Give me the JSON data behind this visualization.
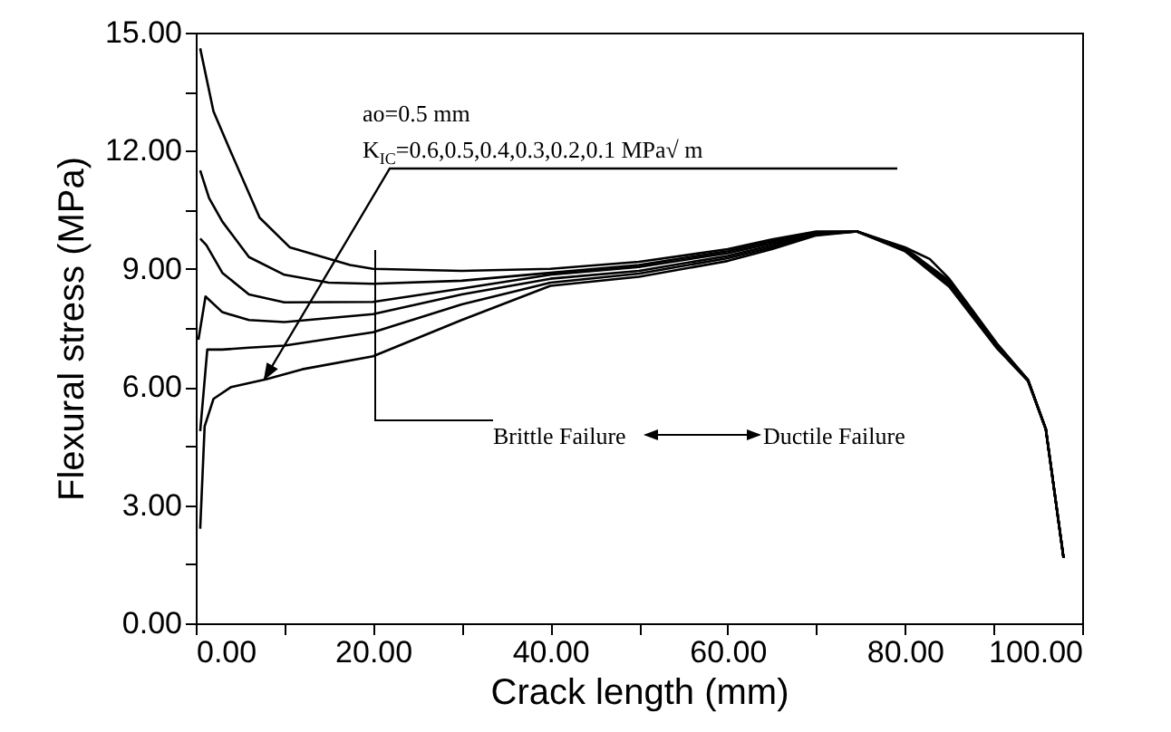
{
  "chart_data": {
    "type": "line",
    "xlabel": "Crack length (mm)",
    "ylabel": "Flexural stress (MPa)",
    "annotations": [
      "ao=0.5 mm",
      "K$_{IC}$=0.6,0.5,0.4,0.3,0.2,0.1 MPa√ m",
      "Brittle Failure",
      "Ductile Failure"
    ],
    "series": [
      {
        "color": "#000000",
        "x": [
          0.5,
          2,
          3.9,
          7.2,
          10.6,
          17.4,
          20,
          30,
          40,
          50,
          60,
          65,
          70,
          74.6,
          80,
          82.8,
          85,
          86.9,
          90.4,
          93.9,
          95.9,
          97.9
        ],
        "values": [
          14.6,
          13.0,
          12.0,
          10.3,
          9.55,
          9.1,
          9.0,
          8.95,
          9.0,
          9.18,
          9.5,
          9.75,
          9.95,
          9.95,
          9.55,
          9.25,
          8.75,
          8.17,
          7.1,
          6.18,
          4.93,
          1.66
        ]
      },
      {
        "color": "#000000",
        "x": [
          0.5,
          1.5,
          3,
          6,
          10,
          15,
          20,
          30,
          40,
          50,
          60,
          65,
          70,
          74.6,
          80,
          85,
          90.4,
          93.9,
          95.9,
          97.9
        ],
        "values": [
          11.5,
          10.8,
          10.2,
          9.3,
          8.85,
          8.65,
          8.62,
          8.7,
          8.9,
          9.1,
          9.45,
          9.7,
          9.93,
          9.95,
          9.53,
          8.7,
          7.08,
          6.18,
          4.93,
          1.66
        ]
      },
      {
        "color": "#000000",
        "x": [
          0.5,
          1.2,
          3,
          6,
          10,
          20,
          30,
          40,
          50,
          60,
          65,
          70,
          74.6,
          80,
          85,
          90.4,
          93.9,
          95.9,
          97.9
        ],
        "values": [
          9.77,
          9.6,
          8.9,
          8.35,
          8.15,
          8.16,
          8.5,
          8.85,
          9.05,
          9.4,
          9.65,
          9.91,
          9.95,
          9.51,
          8.65,
          7.05,
          6.17,
          4.93,
          1.66
        ]
      },
      {
        "color": "#000000",
        "x": [
          0.3,
          1.1,
          3,
          6,
          10,
          20,
          30,
          40,
          50,
          60,
          65,
          70,
          74.6,
          80,
          85,
          90.4,
          93.9,
          95.9,
          97.9
        ],
        "values": [
          7.2,
          8.3,
          7.9,
          7.7,
          7.65,
          7.85,
          8.35,
          8.75,
          8.95,
          9.33,
          9.6,
          9.89,
          9.95,
          9.49,
          8.62,
          7.02,
          6.16,
          4.93,
          1.66
        ]
      },
      {
        "color": "#000000",
        "x": [
          0.5,
          1.3,
          3,
          6,
          10,
          20,
          30,
          40,
          50,
          60,
          65,
          70,
          74.6,
          80,
          85,
          90.4,
          93.9,
          95.9,
          97.9
        ],
        "values": [
          4.88,
          6.95,
          6.95,
          7.0,
          7.05,
          7.39,
          8.1,
          8.65,
          8.88,
          9.27,
          9.55,
          9.87,
          9.95,
          9.47,
          8.58,
          7.0,
          6.15,
          4.93,
          1.66
        ]
      },
      {
        "color": "#000000",
        "x": [
          0.5,
          1.0,
          2,
          4,
          8,
          12,
          20,
          30,
          40,
          50,
          60,
          65,
          70,
          74.6,
          80,
          85,
          90.4,
          93.9,
          95.9,
          97.9
        ],
        "values": [
          2.4,
          5.0,
          5.7,
          6.0,
          6.2,
          6.45,
          6.78,
          7.7,
          8.57,
          8.8,
          9.2,
          9.5,
          9.85,
          9.95,
          9.45,
          8.55,
          6.98,
          6.15,
          4.93,
          1.66
        ]
      }
    ],
    "xlim": [
      0,
      100
    ],
    "ylim": [
      0,
      15
    ],
    "xticks": [
      {
        "value": 0,
        "label": "0.00"
      },
      {
        "value": 10,
        "label": null
      },
      {
        "value": 20,
        "label": "20.00"
      },
      {
        "value": 30,
        "label": null
      },
      {
        "value": 40,
        "label": "40.00"
      },
      {
        "value": 50,
        "label": null
      },
      {
        "value": 60,
        "label": "60.00"
      },
      {
        "value": 70,
        "label": null
      },
      {
        "value": 80,
        "label": "80.00"
      },
      {
        "value": 90,
        "label": null
      },
      {
        "value": 100,
        "label": "100.00"
      }
    ],
    "yticks": [
      {
        "value": 0,
        "label": "0.00"
      },
      {
        "value": 1.5,
        "label": null
      },
      {
        "value": 3,
        "label": "3.00"
      },
      {
        "value": 4.5,
        "label": null
      },
      {
        "value": 6,
        "label": "6.00"
      },
      {
        "value": 7.5,
        "label": null
      },
      {
        "value": 9,
        "label": "9.00"
      },
      {
        "value": 10.5,
        "label": null
      },
      {
        "value": 12,
        "label": "12.00"
      },
      {
        "value": 13.5,
        "label": null
      },
      {
        "value": 15,
        "label": "15.00"
      }
    ],
    "marker": "none",
    "line_style": "solid"
  }
}
